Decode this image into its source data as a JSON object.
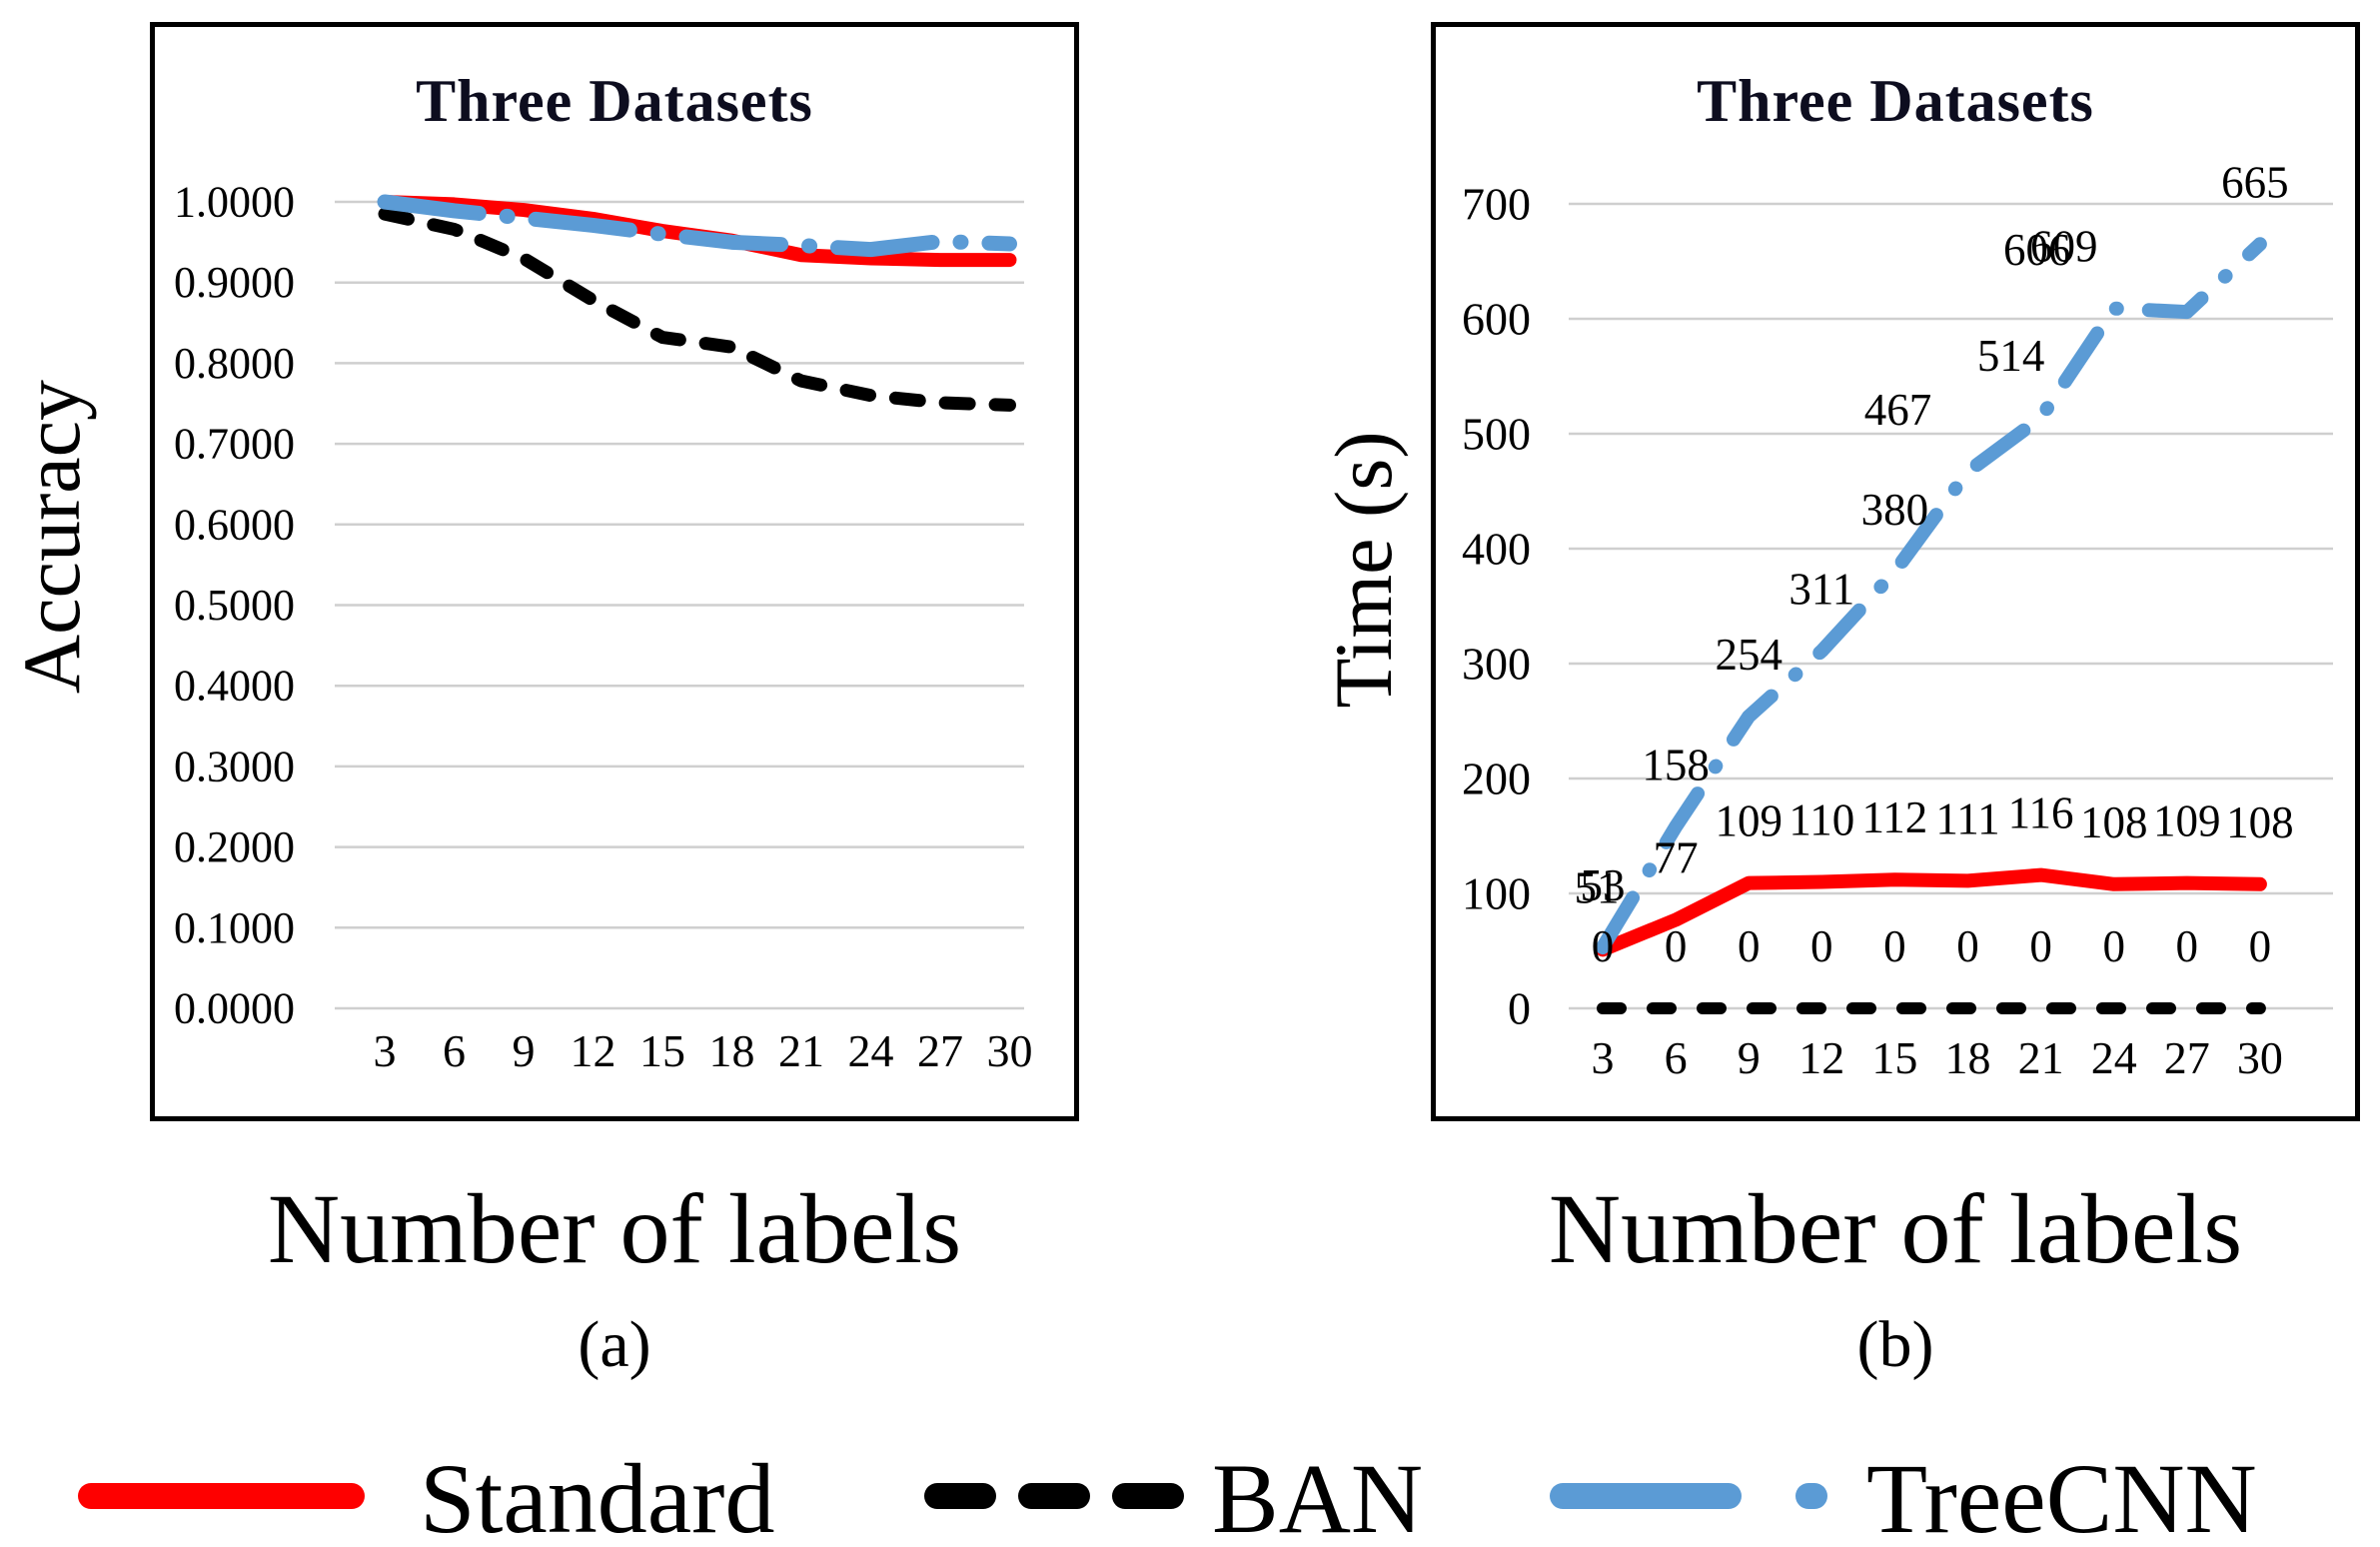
{
  "figure": {
    "panel_a": {
      "title": "Three Datasets",
      "y_axis_label": "Accuracy",
      "x_axis_label": "Number of labels",
      "caption": "(a)"
    },
    "panel_b": {
      "title": "Three Datasets",
      "y_axis_label": "Time (s)",
      "x_axis_label": "Number of labels",
      "caption": "(b)"
    },
    "legend": [
      {
        "name": "Standard",
        "color": "#FE0000",
        "style": "solid"
      },
      {
        "name": "BAN",
        "color": "#000000",
        "style": "dashed"
      },
      {
        "name": "TreeCNN",
        "color": "#5B9BD5",
        "style": "dash-dot"
      }
    ],
    "colors": {
      "gridline": "#CFCFCF",
      "title_text": "#0D0D1F",
      "text": "#000000"
    }
  },
  "chart_data": [
    {
      "id": "accuracy",
      "type": "line",
      "title": "Three Datasets",
      "xlabel": "Number of labels",
      "ylabel": "Accuracy",
      "categories": [
        3,
        6,
        9,
        12,
        15,
        18,
        21,
        24,
        27,
        30
      ],
      "ylim": [
        0,
        1
      ],
      "grid": true,
      "legend_position": "bottom-shared",
      "yticks": [
        {
          "value": 1.0,
          "label": "1.0000"
        },
        {
          "value": 0.9,
          "label": "0.9000"
        },
        {
          "value": 0.8,
          "label": "0.8000"
        },
        {
          "value": 0.7,
          "label": "0.7000"
        },
        {
          "value": 0.6,
          "label": "0.6000"
        },
        {
          "value": 0.5,
          "label": "0.5000"
        },
        {
          "value": 0.4,
          "label": "0.4000"
        },
        {
          "value": 0.3,
          "label": "0.3000"
        },
        {
          "value": 0.2,
          "label": "0.2000"
        },
        {
          "value": 0.1,
          "label": "0.1000"
        },
        {
          "value": 0.0,
          "label": "0.0000"
        }
      ],
      "series": [
        {
          "name": "BAN",
          "color": "#000000",
          "style": "dashed",
          "show_labels": false,
          "values": [
            0.985,
            0.966,
            0.93,
            0.878,
            0.832,
            0.82,
            0.778,
            0.76,
            0.751,
            0.748
          ]
        },
        {
          "name": "Standard",
          "color": "#FE0000",
          "style": "solid",
          "show_labels": false,
          "values": [
            1.0,
            0.997,
            0.99,
            0.979,
            0.964,
            0.952,
            0.934,
            0.93,
            0.928,
            0.928
          ]
        },
        {
          "name": "TreeCNN",
          "color": "#5B9BD5",
          "style": "dash-dot",
          "show_labels": false,
          "values": [
            1.0,
            0.989,
            0.98,
            0.971,
            0.96,
            0.95,
            0.946,
            0.941,
            0.951,
            0.948
          ]
        }
      ]
    },
    {
      "id": "time",
      "type": "line",
      "title": "Three Datasets",
      "xlabel": "Number of labels",
      "ylabel": "Time (s)",
      "categories": [
        3,
        6,
        9,
        12,
        15,
        18,
        21,
        24,
        27,
        30
      ],
      "ylim": [
        0,
        700
      ],
      "grid": true,
      "legend_position": "bottom-shared",
      "yticks": [
        {
          "value": 700,
          "label": "700"
        },
        {
          "value": 600,
          "label": "600"
        },
        {
          "value": 500,
          "label": "500"
        },
        {
          "value": 400,
          "label": "400"
        },
        {
          "value": 300,
          "label": "300"
        },
        {
          "value": 200,
          "label": "200"
        },
        {
          "value": 100,
          "label": "100"
        },
        {
          "value": 0,
          "label": "0"
        }
      ],
      "series": [
        {
          "name": "BAN",
          "color": "#000000",
          "style": "dashed",
          "show_labels": true,
          "values": [
            0,
            0,
            0,
            0,
            0,
            0,
            0,
            0,
            0,
            0
          ]
        },
        {
          "name": "Standard",
          "color": "#FE0000",
          "style": "solid",
          "show_labels": true,
          "values": [
            51,
            77,
            109,
            110,
            112,
            111,
            116,
            108,
            109,
            108
          ]
        },
        {
          "name": "TreeCNN",
          "color": "#5B9BD5",
          "style": "dash-dot",
          "show_labels": true,
          "values": [
            53,
            158,
            254,
            311,
            380,
            467,
            514,
            609,
            606,
            665
          ]
        }
      ]
    }
  ]
}
